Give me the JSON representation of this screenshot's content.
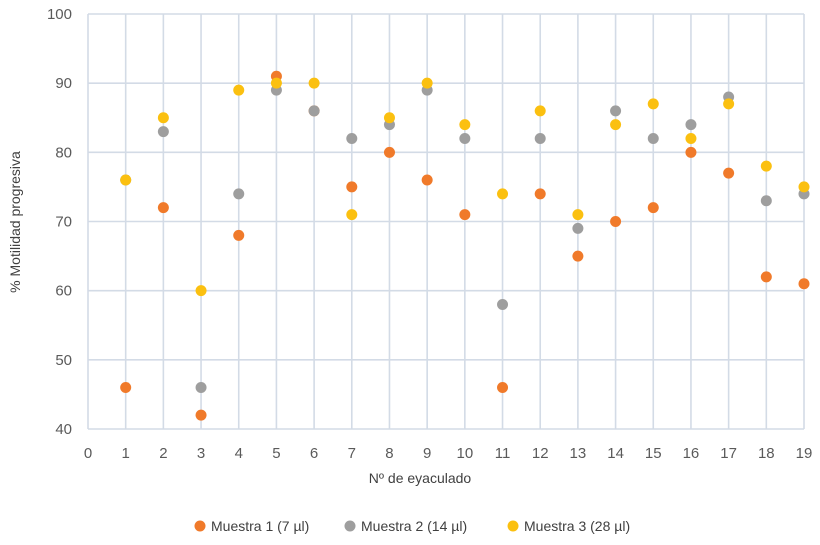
{
  "chart_data": {
    "type": "scatter",
    "xlabel": "Nº de eyaculado",
    "ylabel": "% Motilidad progresiva",
    "xlim": [
      0,
      19
    ],
    "ylim": [
      40,
      100
    ],
    "x_ticks": [
      0,
      1,
      2,
      3,
      4,
      5,
      6,
      7,
      8,
      9,
      10,
      11,
      12,
      13,
      14,
      15,
      16,
      17,
      18,
      19
    ],
    "y_ticks": [
      40,
      50,
      60,
      70,
      80,
      90,
      100
    ],
    "grid": true,
    "legend_position": "bottom",
    "x": [
      1,
      2,
      3,
      4,
      5,
      6,
      7,
      8,
      9,
      10,
      11,
      12,
      13,
      14,
      15,
      16,
      17,
      18,
      19
    ],
    "series": [
      {
        "name": "Muestra 1 (7 µl)",
        "color": "#f07a2a",
        "values": [
          46,
          72,
          42,
          68,
          91,
          86,
          75,
          80,
          76,
          71,
          46,
          74,
          65,
          70,
          72,
          80,
          77,
          62,
          61
        ]
      },
      {
        "name": "Muestra 2 (14 µl)",
        "color": "#9e9e9e",
        "values": [
          76,
          83,
          46,
          74,
          89,
          86,
          82,
          84,
          89,
          82,
          58,
          82,
          69,
          86,
          82,
          84,
          88,
          73,
          74
        ]
      },
      {
        "name": "Muestra 3 (28 µl)",
        "color": "#fbc010",
        "values": [
          76,
          85,
          60,
          89,
          90,
          90,
          71,
          85,
          90,
          84,
          74,
          86,
          71,
          84,
          87,
          82,
          87,
          78,
          75
        ]
      }
    ]
  }
}
